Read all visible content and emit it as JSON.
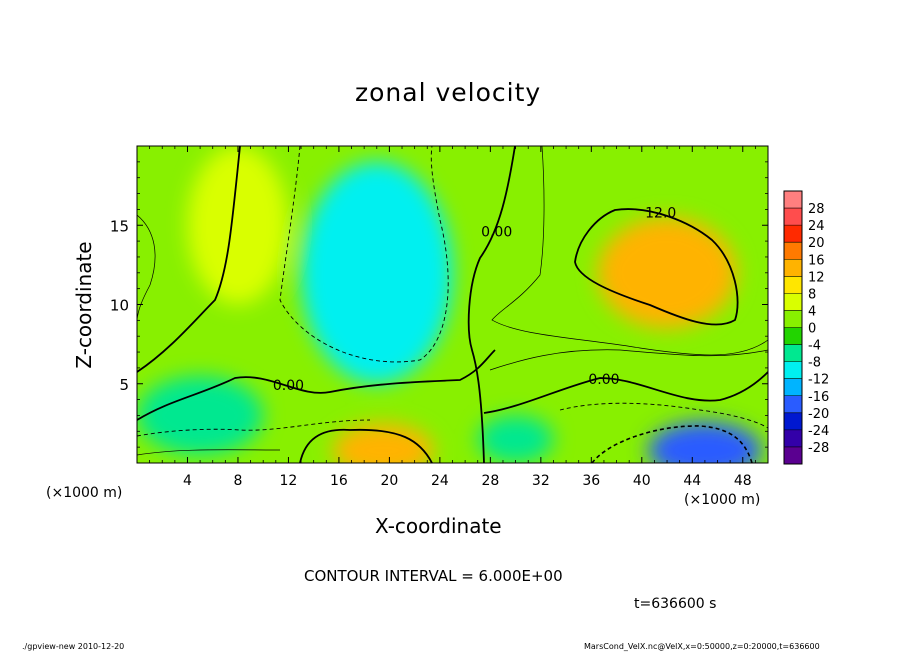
{
  "chart_data": {
    "type": "heatmap",
    "title": "zonal velocity",
    "xlabel": "X-coordinate",
    "ylabel": "Z-coordinate",
    "x_unit_label": "(×1000 m)",
    "y_unit_label": "(×1000 m)",
    "xlim": [
      0,
      50
    ],
    "ylim": [
      0,
      20
    ],
    "x_ticks": [
      4,
      8,
      12,
      16,
      20,
      24,
      28,
      32,
      36,
      40,
      44,
      48
    ],
    "y_ticks": [
      5,
      10,
      15
    ],
    "colorbar_levels": [
      28,
      24,
      20,
      16,
      12,
      8,
      4,
      0,
      -4,
      -8,
      -12,
      -16,
      -20,
      -24,
      -28
    ],
    "colorbar_colors": [
      "#ff7f7f",
      "#ff4d4d",
      "#ff2a00",
      "#ff7a00",
      "#ffb300",
      "#ffe600",
      "#d9ff00",
      "#88f000",
      "#22d400",
      "#00e890",
      "#00f0f0",
      "#00b4ff",
      "#2a5cff",
      "#0018d0",
      "#3300a8",
      "#5a0090"
    ],
    "contour_labels": [
      {
        "text": "12.0",
        "x": 41.5,
        "z": 15.5
      },
      {
        "text": "0.00",
        "x": 28.5,
        "z": 14.3
      },
      {
        "text": "0.00",
        "x": 12.0,
        "z": 4.6
      },
      {
        "text": "0.00",
        "x": 37.0,
        "z": 5.0
      }
    ],
    "contour_interval_text": "CONTOUR INTERVAL = 6.000E+00",
    "time_text": "t=636600 s",
    "blobs": [
      {
        "x": 19,
        "z": 12,
        "rx": 6,
        "rz": 7,
        "value": -8
      },
      {
        "x": 19,
        "z": 12.5,
        "rx": 2.5,
        "rz": 2.5,
        "value": -11
      },
      {
        "x": 42,
        "z": 12,
        "rx": 5.5,
        "rz": 3.5,
        "value": 13
      },
      {
        "x": 19.5,
        "z": 0.8,
        "rx": 4,
        "rz": 1.7,
        "value": 15
      },
      {
        "x": 45,
        "z": 0.8,
        "rx": 4.5,
        "rz": 1.8,
        "value": -17
      },
      {
        "x": 5,
        "z": 3,
        "rx": 5,
        "rz": 2.5,
        "value": -4
      },
      {
        "x": 30,
        "z": 1.5,
        "rx": 3,
        "rz": 1.5,
        "value": -4
      },
      {
        "x": 8,
        "z": 15,
        "rx": 4,
        "rz": 5,
        "value": 6
      }
    ]
  },
  "footer": {
    "left": "./gpview-new  2010-12-20",
    "right": "MarsCond_VelX.nc@VelX,x=0:50000,z=0:20000,t=636600"
  }
}
